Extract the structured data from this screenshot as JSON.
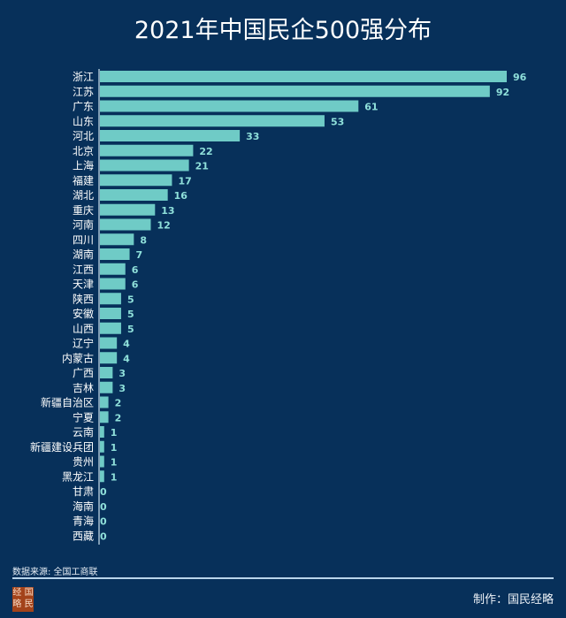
{
  "title": "2021年中国民企500强分布",
  "chart_data": {
    "type": "bar",
    "orientation": "horizontal",
    "title": "2021年中国民企500强分布",
    "categories": [
      "浙江",
      "江苏",
      "广东",
      "山东",
      "河北",
      "北京",
      "上海",
      "福建",
      "湖北",
      "重庆",
      "河南",
      "四川",
      "湖南",
      "江西",
      "天津",
      "陕西",
      "安徽",
      "山西",
      "辽宁",
      "内蒙古",
      "广西",
      "吉林",
      "新疆自治区",
      "宁夏",
      "云南",
      "新疆建设兵团",
      "贵州",
      "黑龙江",
      "甘肃",
      "海南",
      "青海",
      "西藏"
    ],
    "values": [
      96,
      92,
      61,
      53,
      33,
      22,
      21,
      17,
      16,
      13,
      12,
      8,
      7,
      6,
      6,
      5,
      5,
      5,
      4,
      4,
      3,
      3,
      2,
      2,
      1,
      1,
      1,
      1,
      0,
      0,
      0,
      0
    ],
    "xlim": [
      0,
      96
    ],
    "grid": false,
    "data_labels": true,
    "bar_color": "#6fcbc6",
    "label_color": "#8fe0da",
    "background_color": "#07305a"
  },
  "footer": {
    "source": "数据来源: 全国工商联",
    "credit": "制作：国民经略",
    "logo_text": "经国略民"
  }
}
